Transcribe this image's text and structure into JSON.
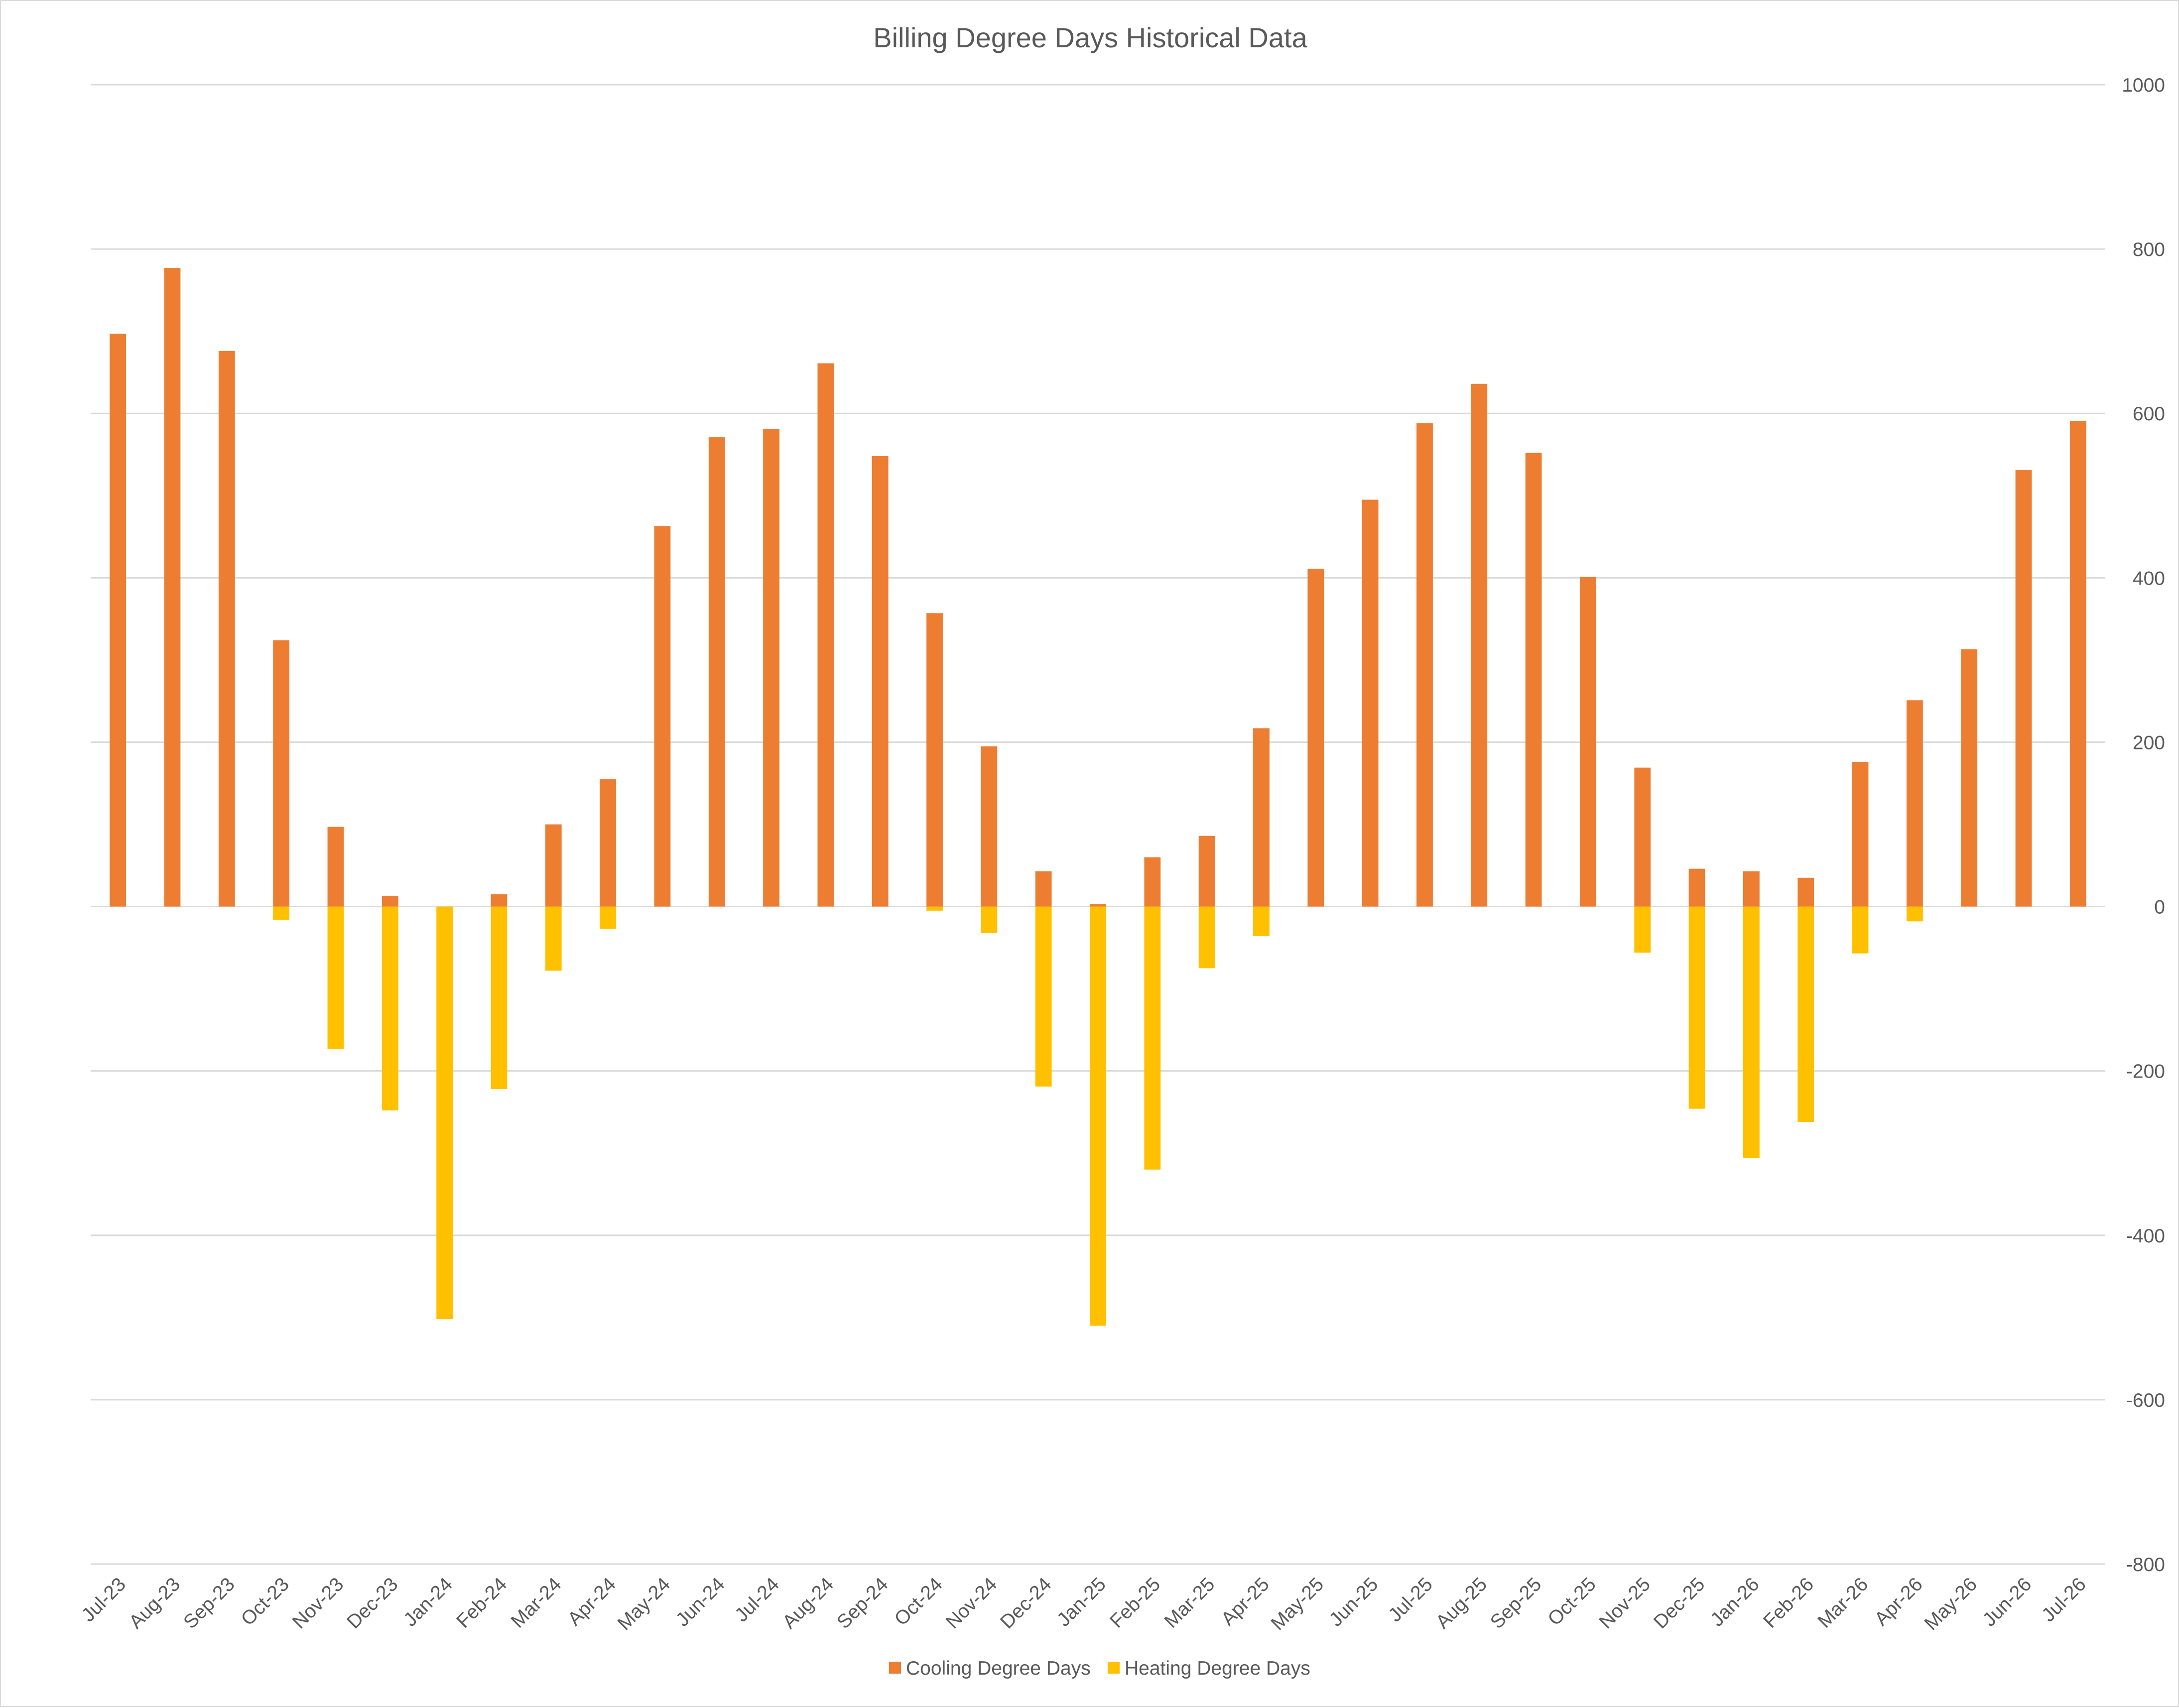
{
  "chart_data": {
    "type": "bar",
    "title": "Billing Degree Days Historical Data",
    "xlabel": "",
    "ylabel": "",
    "ylim": [
      -800,
      1000
    ],
    "y_ticks": [
      1000,
      800,
      600,
      400,
      200,
      0,
      -200,
      -400,
      -600,
      -800
    ],
    "y_axis_position": "right",
    "grid": true,
    "legend_position": "bottom",
    "stacked": true,
    "categories": [
      "Jul-23",
      "Aug-23",
      "Sep-23",
      "Oct-23",
      "Nov-23",
      "Dec-23",
      "Jan-24",
      "Feb-24",
      "Mar-24",
      "Apr-24",
      "May-24",
      "Jun-24",
      "Jul-24",
      "Aug-24",
      "Sep-24",
      "Oct-24",
      "Nov-24",
      "Dec-24",
      "Jan-25",
      "Feb-25",
      "Mar-25",
      "Apr-25",
      "May-25",
      "Jun-25",
      "Jul-25",
      "Aug-25",
      "Sep-25",
      "Oct-25",
      "Nov-25",
      "Dec-25",
      "Jan-26",
      "Feb-26",
      "Mar-26",
      "Apr-26",
      "May-26",
      "Jun-26",
      "Jul-26"
    ],
    "series": [
      {
        "name": "Cooling Degree Days",
        "color": "#ED7D31",
        "values": [
          697,
          777,
          676,
          324,
          97,
          13,
          0,
          15,
          100,
          155,
          463,
          571,
          581,
          661,
          548,
          357,
          195,
          43,
          3,
          60,
          86,
          217,
          411,
          495,
          588,
          636,
          552,
          401,
          169,
          46,
          43,
          35,
          176,
          251,
          313,
          531,
          591
        ]
      },
      {
        "name": "Heating Degree Days",
        "color": "#FFC000",
        "values": [
          0,
          0,
          0,
          -16,
          -173,
          -248,
          -502,
          -222,
          -78,
          -27,
          0,
          0,
          0,
          0,
          0,
          -5,
          -32,
          -219,
          -510,
          -320,
          -75,
          -36,
          0,
          0,
          0,
          0,
          0,
          0,
          -56,
          -246,
          -306,
          -262,
          -57,
          -18,
          0,
          0,
          0
        ]
      }
    ]
  }
}
